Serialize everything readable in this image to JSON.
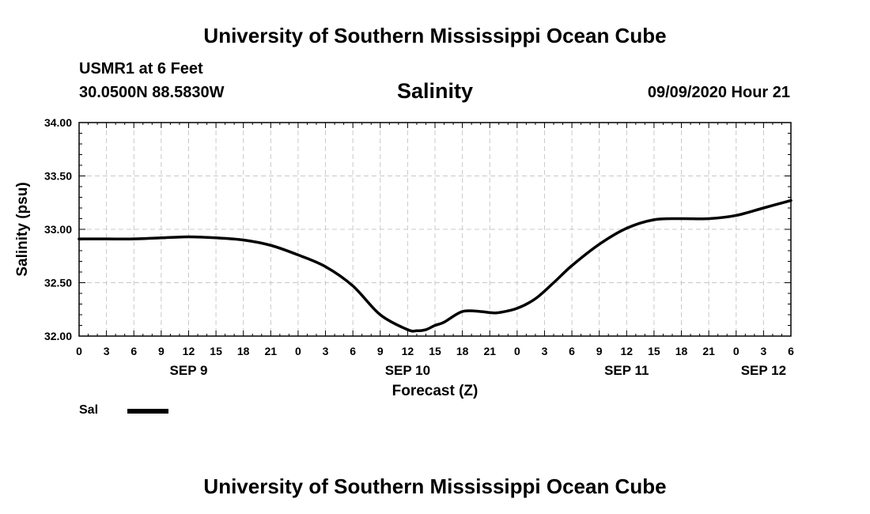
{
  "header": {
    "title_top": "University of Southern Mississippi Ocean Cube",
    "station": "USMR1 at 6 Feet",
    "coords": "30.0500N 88.5830W",
    "datetime": "09/09/2020 Hour 21",
    "title_bottom": "University of Southern Mississippi Ocean Cube"
  },
  "chart_data": {
    "type": "line",
    "title": "Salinity",
    "xlabel": "Forecast (Z)",
    "ylabel": "Salinity (psu)",
    "ylim": [
      32.0,
      34.0
    ],
    "xlim": [
      0,
      78
    ],
    "y_ticks": [
      "32.00",
      "32.50",
      "33.00",
      "33.50",
      "34.00"
    ],
    "x_ticks": [
      "0",
      "3",
      "6",
      "9",
      "12",
      "15",
      "18",
      "21",
      "0",
      "3",
      "6",
      "9",
      "12",
      "15",
      "18",
      "21",
      "0",
      "3",
      "6",
      "9",
      "12",
      "15",
      "18",
      "21",
      "0",
      "3",
      "6"
    ],
    "day_labels": [
      {
        "label": "SEP 9",
        "hour": 12
      },
      {
        "label": "SEP 10",
        "hour": 36
      },
      {
        "label": "SEP 11",
        "hour": 60
      },
      {
        "label": "SEP 12",
        "hour": 75
      }
    ],
    "grid": true,
    "legend_position": "bottom-left",
    "series": [
      {
        "name": "Sal",
        "color": "#000000",
        "x": [
          0,
          3,
          6,
          9,
          12,
          15,
          18,
          21,
          24,
          27,
          30,
          33,
          36,
          37,
          38,
          39,
          40,
          42,
          44,
          45,
          46,
          48,
          50,
          52,
          54,
          57,
          60,
          63,
          66,
          69,
          72,
          75,
          78
        ],
        "values": [
          32.91,
          32.91,
          32.91,
          32.92,
          32.93,
          32.92,
          32.9,
          32.85,
          32.76,
          32.65,
          32.47,
          32.2,
          32.06,
          32.05,
          32.06,
          32.1,
          32.13,
          32.23,
          32.23,
          32.22,
          32.22,
          32.26,
          32.35,
          32.5,
          32.66,
          32.86,
          33.01,
          33.09,
          33.1,
          33.1,
          33.13,
          33.2,
          33.27
        ]
      }
    ]
  }
}
